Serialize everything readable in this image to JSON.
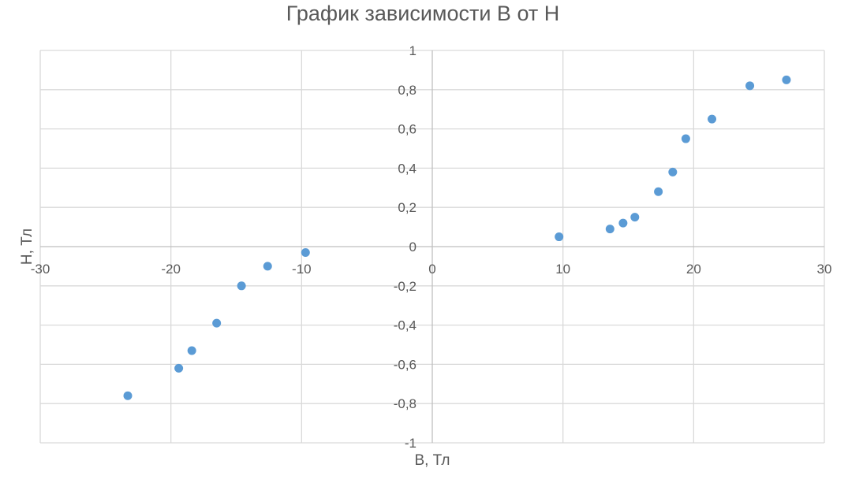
{
  "chart_data": {
    "type": "scatter",
    "title": "График зависимости B от H",
    "xlabel": "B, Тл",
    "ylabel": "H, Тл",
    "xlim": [
      -30,
      30
    ],
    "ylim": [
      -1,
      1
    ],
    "x_ticks": [
      -30,
      -20,
      -10,
      0,
      10,
      20,
      30
    ],
    "y_ticks": [
      1,
      0.8,
      0.6,
      0.4,
      0.2,
      0,
      -0.2,
      -0.4,
      -0.6,
      -0.8,
      -1
    ],
    "x_tick_labels": [
      "-30",
      "-20",
      "-10",
      "0",
      "10",
      "20",
      "30"
    ],
    "y_tick_labels": [
      "1",
      "0,8",
      "0,6",
      "0,4",
      "0,2",
      "0",
      "-0,2",
      "-0,4",
      "-0,6",
      "-0,8",
      "-1"
    ],
    "grid": true,
    "marker_color": "#5b9bd5",
    "points": [
      {
        "x": -23.3,
        "y": -0.76
      },
      {
        "x": -19.4,
        "y": -0.62
      },
      {
        "x": -18.4,
        "y": -0.53
      },
      {
        "x": -16.5,
        "y": -0.39
      },
      {
        "x": -14.6,
        "y": -0.2
      },
      {
        "x": -12.6,
        "y": -0.1
      },
      {
        "x": -9.7,
        "y": -0.03
      },
      {
        "x": 9.7,
        "y": 0.05
      },
      {
        "x": 13.6,
        "y": 0.09
      },
      {
        "x": 14.6,
        "y": 0.12
      },
      {
        "x": 15.5,
        "y": 0.15
      },
      {
        "x": 17.3,
        "y": 0.28
      },
      {
        "x": 18.4,
        "y": 0.38
      },
      {
        "x": 19.4,
        "y": 0.55
      },
      {
        "x": 21.4,
        "y": 0.65
      },
      {
        "x": 24.3,
        "y": 0.82
      },
      {
        "x": 27.1,
        "y": 0.85
      }
    ]
  }
}
